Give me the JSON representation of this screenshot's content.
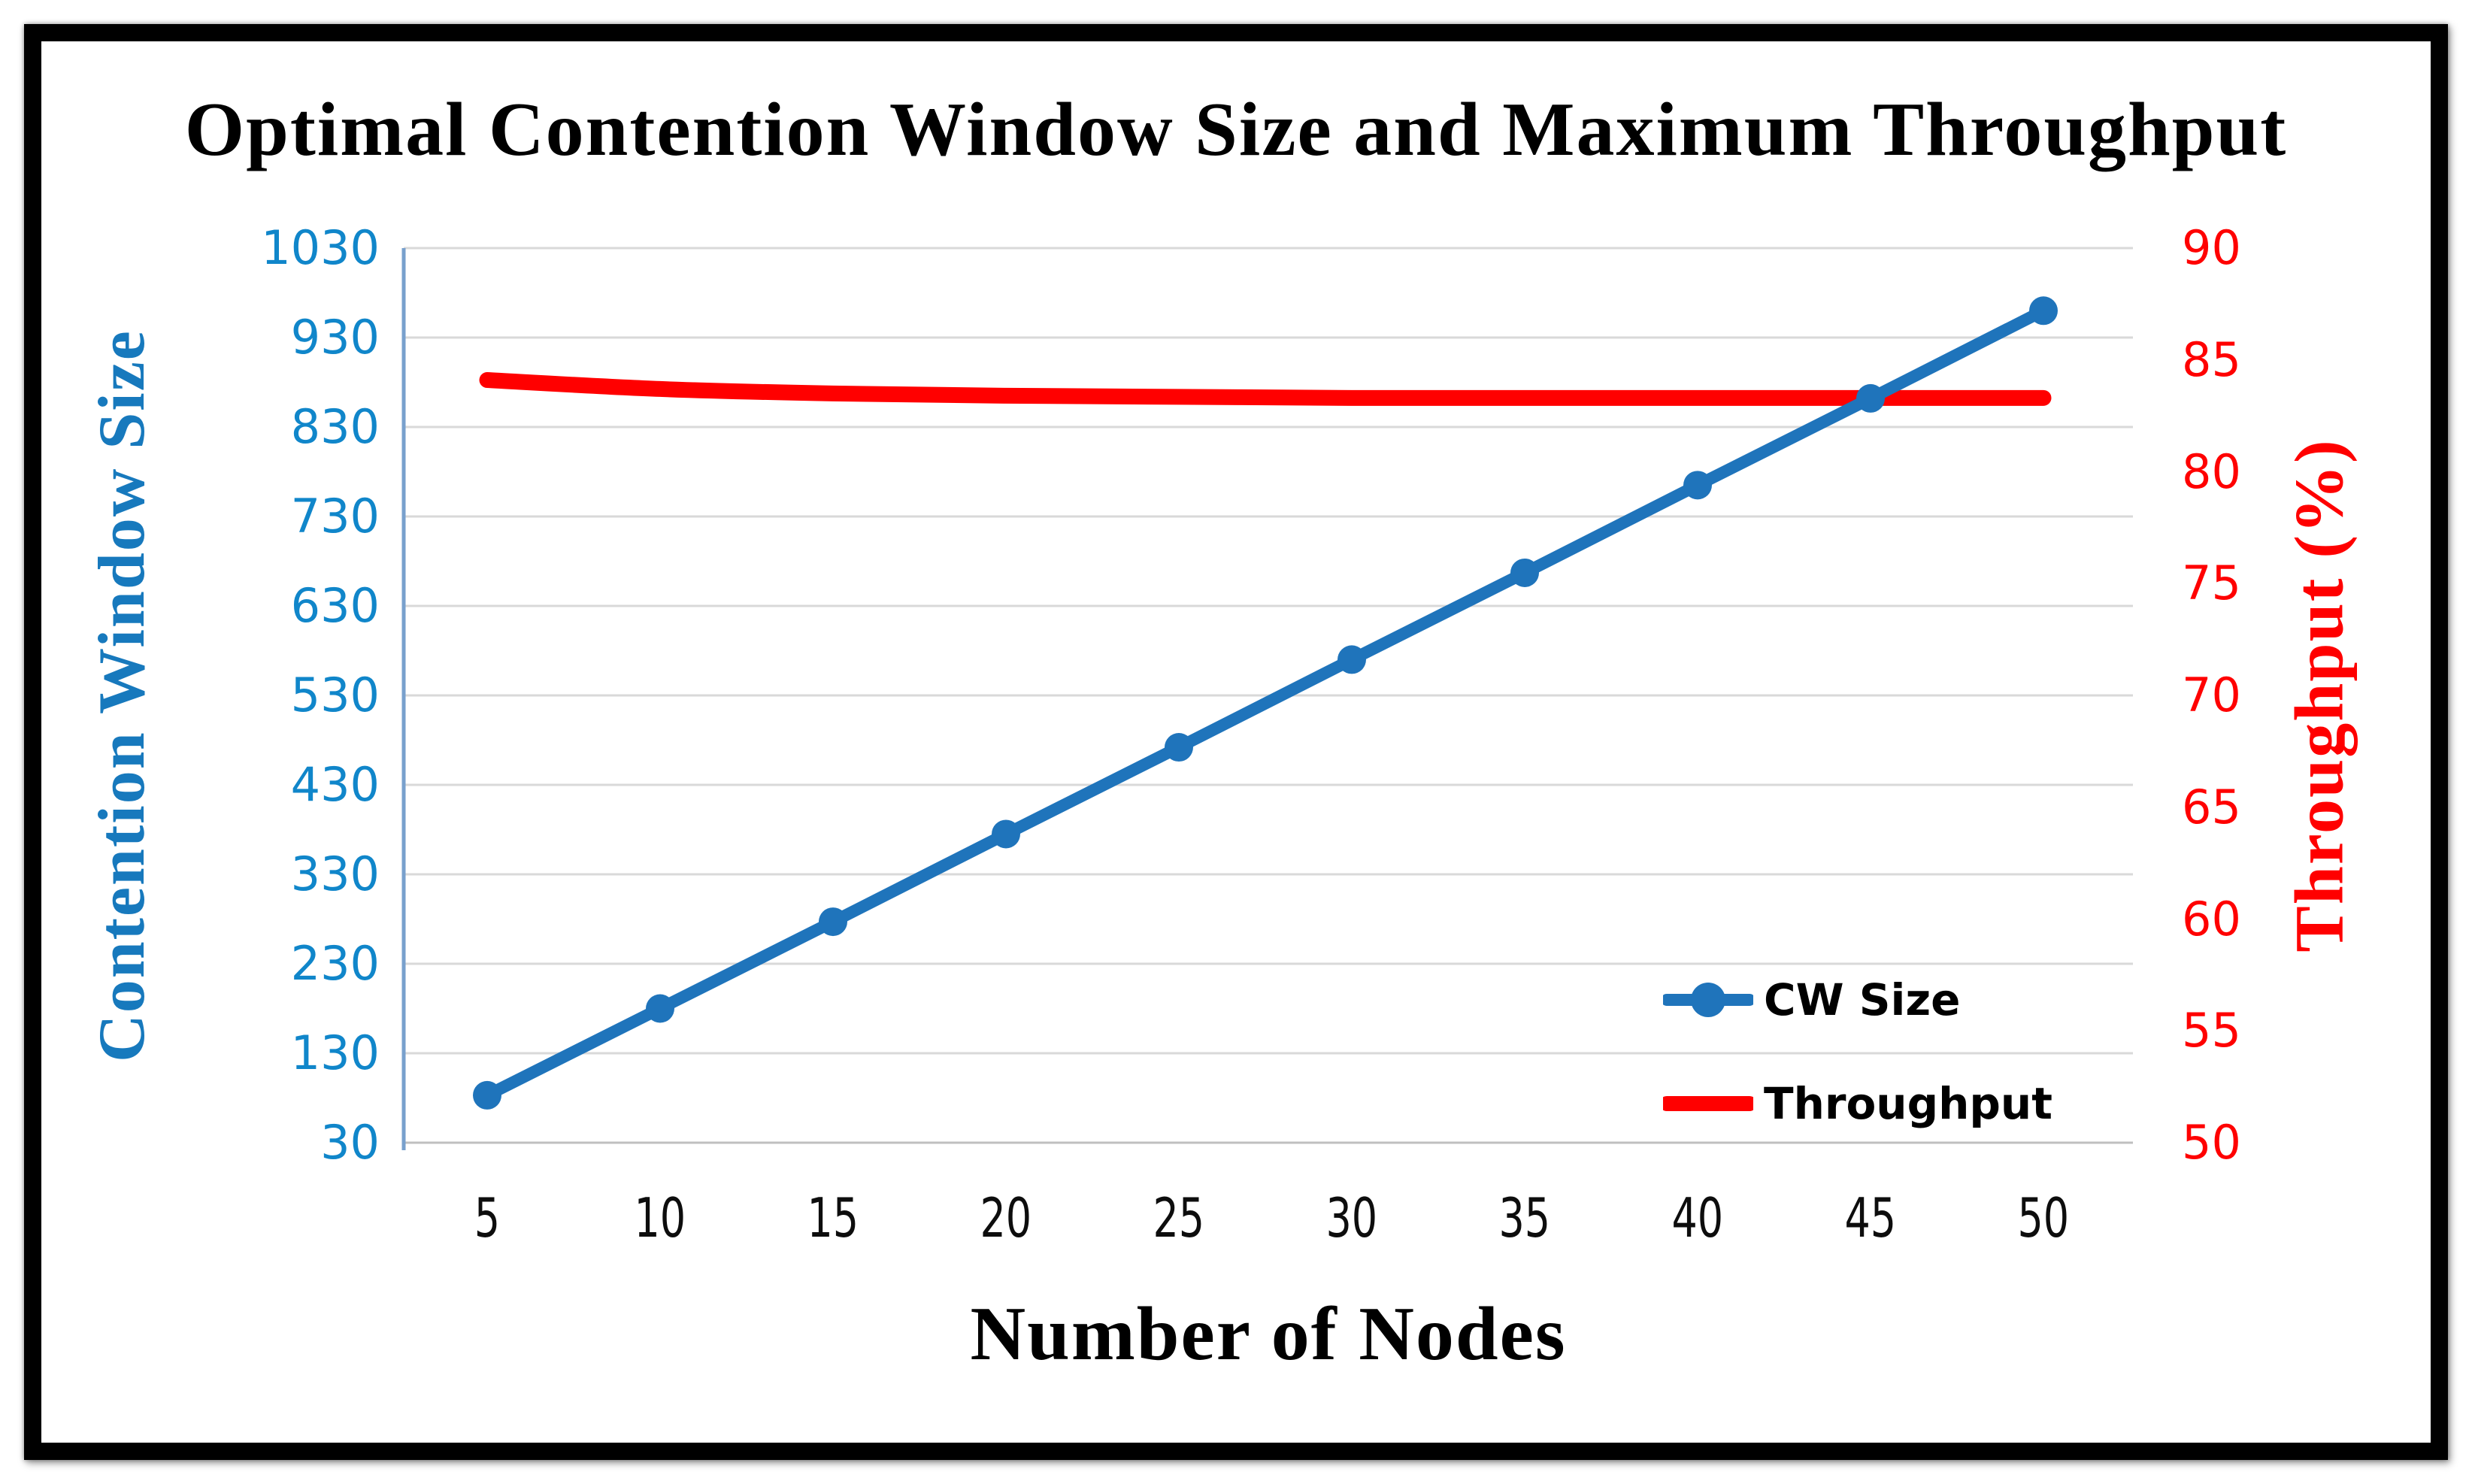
{
  "chart_data": {
    "type": "line",
    "title": "Optimal Contention Window Size and Maximum Throughput",
    "xlabel": "Number of Nodes",
    "ylabel_left": "Contention Window Size",
    "ylabel_right": "Throughput (%)",
    "x": [
      5,
      10,
      15,
      20,
      25,
      30,
      35,
      40,
      45,
      50
    ],
    "series": [
      {
        "name": "CW Size",
        "axis": "left",
        "color": "#1F74BB",
        "marker": "circle",
        "smooth": false,
        "values": [
          83,
          180,
          277,
          375,
          472,
          570,
          667,
          765,
          862,
          960
        ]
      },
      {
        "name": "Throughput",
        "axis": "right",
        "color": "#FF0000",
        "marker": "none",
        "smooth": true,
        "values": [
          84.1,
          83.7,
          83.5,
          83.4,
          83.35,
          83.3,
          83.3,
          83.3,
          83.3,
          83.3
        ]
      }
    ],
    "ylim_left": [
      30,
      1030
    ],
    "yticks_left": [
      1030,
      930,
      830,
      730,
      630,
      530,
      430,
      330,
      230,
      130,
      30
    ],
    "ylim_right": [
      50,
      90
    ],
    "yticks_right": [
      90,
      85,
      80,
      75,
      70,
      65,
      60,
      55,
      50
    ],
    "grid": true,
    "legend_position": "inside-bottom-right",
    "legend": [
      {
        "label": "CW Size"
      },
      {
        "label": "Throughput"
      }
    ]
  },
  "colors": {
    "title_text": "#000000",
    "left_tick_text": "#1086CA",
    "left_axis_title": "#1779BD",
    "right_axis_red": "#FF0000",
    "cw_line_blue": "#1F74BB",
    "gridline": "#D9D9D9",
    "left_axis_line": "#78A0CD",
    "bottom_axis_line": "#BFBFBF",
    "x_tick_text": "#0D0D0D",
    "frame_border": "#000000"
  }
}
